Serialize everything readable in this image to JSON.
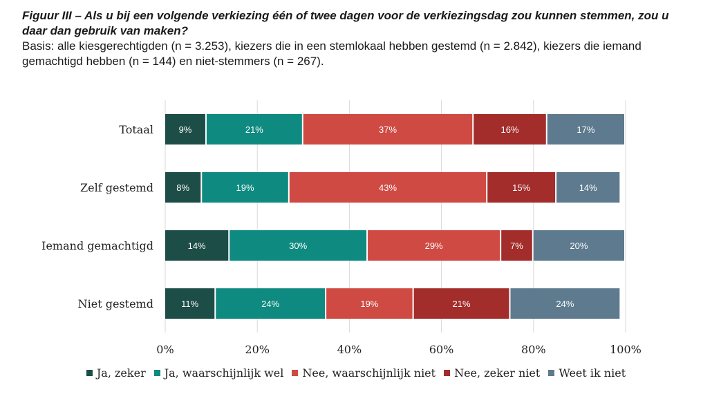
{
  "chart_data": {
    "type": "bar",
    "orientation": "horizontal",
    "stacked": true,
    "title": "Figuur III – Als u bij een volgende verkiezing één of twee dagen voor de verkiezingsdag zou kunnen stemmen, zou u daar dan gebruik van maken?",
    "subtitle": "Basis: alle kiesgerechtigden (n = 3.253), kiezers die in een stemlokaal hebben gestemd (n = 2.842), kiezers die iemand gemachtigd hebben (n = 144) en niet-stemmers (n = 267).",
    "categories": [
      "Totaal",
      "Zelf gestemd",
      "Iemand gemachtigd",
      "Niet gestemd"
    ],
    "series": [
      {
        "name": "Ja, zeker",
        "color": "#1d4d47",
        "values": [
          9,
          8,
          14,
          11
        ],
        "labels": [
          "9%",
          "8%",
          "14%",
          "11%"
        ]
      },
      {
        "name": "Ja, waarschijnlijk wel",
        "color": "#0f8a80",
        "values": [
          21,
          19,
          30,
          24
        ],
        "labels": [
          "21%",
          "19%",
          "30%",
          "24%"
        ]
      },
      {
        "name": "Nee, waarschijnlijk niet",
        "color": "#cf4a43",
        "values": [
          37,
          43,
          29,
          19
        ],
        "labels": [
          "37%",
          "43%",
          "29%",
          "19%"
        ]
      },
      {
        "name": "Nee, zeker niet",
        "color": "#a22d2b",
        "values": [
          16,
          15,
          7,
          21
        ],
        "labels": [
          "16%",
          "15%",
          "7%",
          "21%"
        ]
      },
      {
        "name": "Weet ik niet",
        "color": "#5e7a8e",
        "values": [
          17,
          14,
          20,
          24
        ],
        "labels": [
          "17%",
          "14%",
          "20%",
          "24%"
        ]
      }
    ],
    "xlim": [
      0,
      100
    ],
    "xticks": [
      0,
      20,
      40,
      60,
      80,
      100
    ],
    "xtick_labels": [
      "0%",
      "20%",
      "40%",
      "60%",
      "80%",
      "100%"
    ],
    "grid": true,
    "legend_position": "bottom"
  }
}
